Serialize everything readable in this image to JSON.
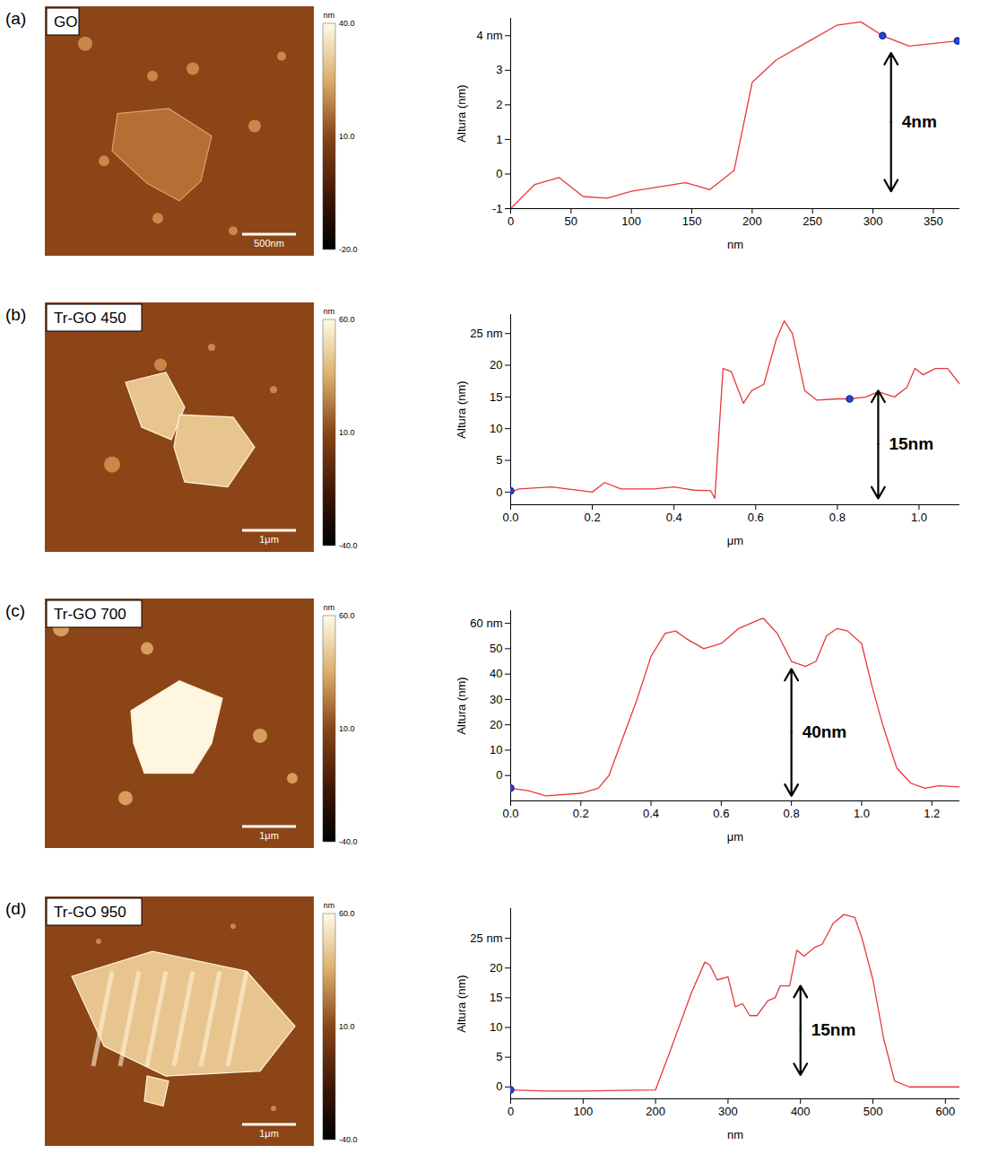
{
  "chart_data": [
    {
      "type": "line",
      "panel": "(a)",
      "image_title": "GO",
      "scale_bar": "500nm",
      "colorbar": {
        "label": "nm",
        "range": [
          -20,
          40
        ],
        "ticks": [
          {
            "value": 40,
            "label": "40.0"
          },
          {
            "value": 10,
            "label": "10.0"
          },
          {
            "value": -20,
            "label": "-20.0"
          }
        ]
      },
      "x_label": "nm",
      "y_label": "Altura (nm)",
      "color": "#e8383a",
      "x": [
        0,
        20,
        40,
        60,
        80,
        100,
        145,
        165,
        185,
        200,
        220,
        250,
        270,
        290,
        308,
        330,
        370
      ],
      "values": [
        -1,
        -0.3,
        -0.1,
        -0.65,
        -0.7,
        -0.5,
        -0.25,
        -0.45,
        0.1,
        2.65,
        3.3,
        3.9,
        4.3,
        4.4,
        4.0,
        3.7,
        3.85
      ],
      "xlim": [
        0,
        372
      ],
      "xticks": [
        0,
        50,
        100,
        150,
        200,
        250,
        300,
        350
      ],
      "ylim": [
        -1,
        4.5
      ],
      "yticks": [
        -1,
        0,
        1,
        2,
        3,
        {
          "value": 4,
          "label": "4 nm"
        }
      ],
      "annotation": {
        "x": 315,
        "y": [
          -0.5,
          3.5
        ],
        "label": "4nm"
      },
      "cursors": {
        "x": [
          308,
          370
        ],
        "y": [
          4.0,
          3.85
        ]
      }
    },
    {
      "type": "line",
      "panel": "(b)",
      "image_title": "Tr-GO 450",
      "scale_bar": "1μm",
      "colorbar": {
        "label": "nm",
        "range": [
          -40,
          60
        ],
        "ticks": [
          {
            "value": 60,
            "label": "60.0"
          },
          {
            "value": 10,
            "label": "10.0"
          },
          {
            "value": -40,
            "label": "-40.0"
          }
        ]
      },
      "x_label": "μm",
      "y_label": "Altura (nm)",
      "color": "#e8383a",
      "x": [
        0,
        0.02,
        0.1,
        0.2,
        0.23,
        0.27,
        0.35,
        0.4,
        0.45,
        0.49,
        0.5,
        0.52,
        0.54,
        0.57,
        0.59,
        0.62,
        0.65,
        0.67,
        0.69,
        0.72,
        0.75,
        0.8,
        0.83,
        0.87,
        0.9,
        0.94,
        0.97,
        0.99,
        1.01,
        1.04,
        1.07,
        1.1
      ],
      "values": [
        0,
        0.5,
        0.8,
        0,
        1.5,
        0.5,
        0.5,
        0.8,
        0.3,
        0.2,
        -1,
        19.5,
        19,
        14,
        16,
        17,
        24,
        27,
        25,
        16,
        14.5,
        14.7,
        14.7,
        15,
        15.8,
        15,
        16.5,
        19.5,
        18.5,
        19.5,
        19.5,
        17
      ],
      "xlim": [
        0,
        1.1
      ],
      "xticks": [
        {
          "value": 0,
          "label": "0.0"
        },
        0.2,
        0.4,
        0.6,
        0.8,
        {
          "value": 1,
          "label": "1.0"
        }
      ],
      "ylim": [
        -2,
        28
      ],
      "yticks": [
        0,
        5,
        10,
        15,
        20,
        {
          "value": 25,
          "label": "25 nm"
        }
      ],
      "annotation": {
        "x": 0.9,
        "y": [
          -1,
          16
        ],
        "label": "15nm"
      },
      "cursors": {
        "x": [
          0,
          0.83
        ],
        "y": [
          0.2,
          14.7
        ]
      }
    },
    {
      "type": "line",
      "panel": "(c)",
      "image_title": "Tr-GO 700",
      "scale_bar": "1μm",
      "colorbar": {
        "label": "nm",
        "range": [
          -40,
          60
        ],
        "ticks": [
          {
            "value": 60,
            "label": "60.0"
          },
          {
            "value": 10,
            "label": "10.0"
          },
          {
            "value": -40,
            "label": "-40.0"
          }
        ]
      },
      "x_label": "μm",
      "y_label": "Altura (nm)",
      "color": "#e8383a",
      "x": [
        0,
        0.05,
        0.1,
        0.2,
        0.25,
        0.28,
        0.32,
        0.36,
        0.4,
        0.44,
        0.47,
        0.5,
        0.55,
        0.6,
        0.65,
        0.7,
        0.72,
        0.76,
        0.8,
        0.84,
        0.87,
        0.9,
        0.93,
        0.96,
        1.0,
        1.03,
        1.06,
        1.1,
        1.14,
        1.18,
        1.22,
        1.28
      ],
      "values": [
        -5,
        -6,
        -8,
        -7,
        -5,
        0,
        15,
        30,
        47,
        56,
        57,
        54,
        50,
        52,
        58,
        61,
        62,
        56,
        45,
        43,
        45,
        55,
        58,
        57,
        52,
        35,
        20,
        3,
        -3,
        -5,
        -4,
        -4.5
      ],
      "xlim": [
        0,
        1.28
      ],
      "xticks": [
        {
          "value": 0,
          "label": "0.0"
        },
        0.2,
        0.4,
        0.6,
        0.8,
        {
          "value": 1,
          "label": "1.0"
        },
        1.2
      ],
      "ylim": [
        -10,
        65
      ],
      "yticks": [
        0,
        10,
        20,
        30,
        40,
        50,
        {
          "value": 60,
          "label": "60 nm"
        }
      ],
      "annotation": {
        "x": 0.8,
        "y": [
          -8,
          42
        ],
        "label": "40nm"
      },
      "cursors": {
        "x": [
          0
        ],
        "y": [
          -5
        ]
      }
    },
    {
      "type": "line",
      "panel": "(d)",
      "image_title": "Tr-GO 950",
      "scale_bar": "1μm",
      "colorbar": {
        "label": "nm",
        "range": [
          -40,
          60
        ],
        "ticks": [
          {
            "value": 60,
            "label": "60.0"
          },
          {
            "value": 10,
            "label": "10.0"
          },
          {
            "value": -40,
            "label": "-40.0"
          }
        ]
      },
      "x_label": "nm",
      "y_label": "Altura (nm)",
      "color": "#e8383a",
      "x": [
        0,
        50,
        100,
        150,
        200,
        220,
        250,
        268,
        275,
        285,
        300,
        310,
        320,
        330,
        340,
        355,
        365,
        372,
        385,
        395,
        405,
        420,
        430,
        445,
        460,
        475,
        485,
        500,
        515,
        530,
        550,
        600,
        620
      ],
      "values": [
        -0.5,
        -0.7,
        -0.7,
        -0.6,
        -0.5,
        6,
        16,
        21,
        20.5,
        18,
        18.5,
        13.5,
        14,
        12,
        12,
        14.5,
        15,
        17,
        17,
        23,
        22,
        23.5,
        24,
        27.5,
        29,
        28.5,
        25,
        18,
        8,
        1,
        0,
        0,
        0
      ],
      "xlim": [
        0,
        620
      ],
      "xticks": [
        0,
        100,
        200,
        300,
        400,
        500,
        600
      ],
      "ylim": [
        -2,
        30
      ],
      "yticks": [
        0,
        5,
        10,
        15,
        20,
        {
          "value": 25,
          "label": "25 nm"
        }
      ],
      "annotation": {
        "x": 400,
        "y": [
          2,
          17
        ],
        "label": "15nm"
      },
      "cursors": {
        "x": [
          0
        ],
        "y": [
          -0.5
        ]
      }
    }
  ]
}
